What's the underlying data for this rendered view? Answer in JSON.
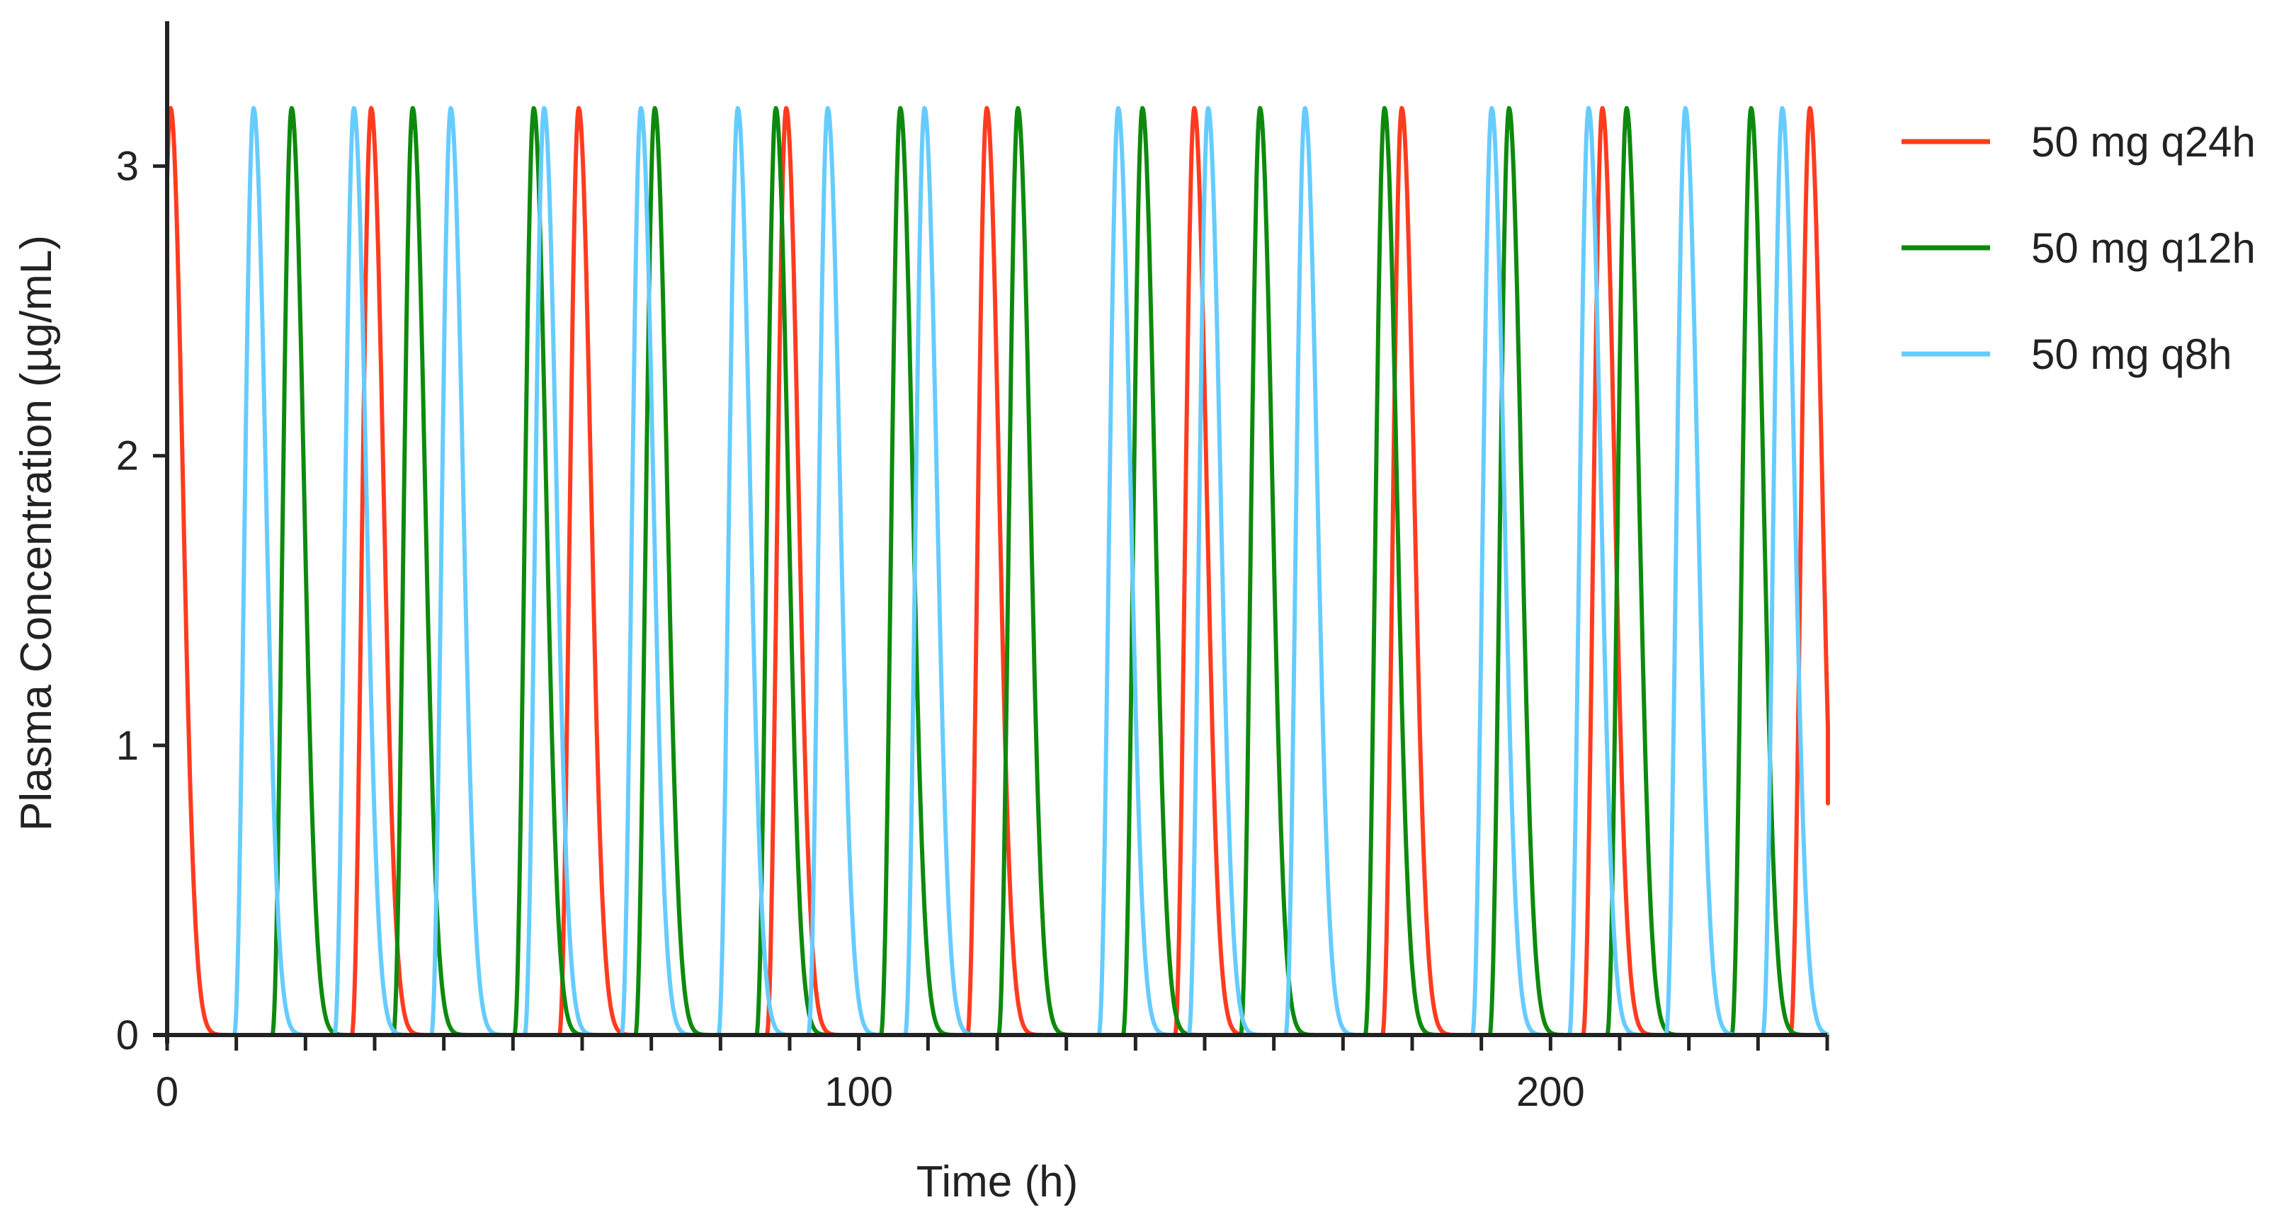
{
  "chart_data": {
    "type": "line",
    "title": "",
    "xlabel": "Time (h)",
    "ylabel": "Plasma Concentration (µg/mL)",
    "xlim": [
      0,
      240
    ],
    "ylim": [
      0,
      3.5
    ],
    "x_ticks": [
      0,
      100,
      200
    ],
    "x_minor_step": 10,
    "y_ticks": [
      0,
      1,
      2,
      3
    ],
    "grid": false,
    "legend_position": "right",
    "series": [
      {
        "name": "50 mg q24h",
        "color": "#ff3b1f",
        "peak_concentration": 3.2,
        "end_concentration": 0.8,
        "peak_times": [
          0.5,
          29.5,
          59.5,
          89.5,
          118.5,
          148.5,
          178.5,
          207.5,
          237.5
        ]
      },
      {
        "name": "50 mg q12h",
        "color": "#0d8a0d",
        "peak_concentration": 3.2,
        "peak_times": [
          18,
          35.5,
          53,
          70.5,
          88,
          106,
          123,
          141,
          158,
          176,
          194,
          211,
          229
        ]
      },
      {
        "name": "50 mg q8h",
        "color": "#66ccff",
        "peak_concentration": 3.2,
        "peak_times": [
          12.5,
          27,
          41,
          54.5,
          68.5,
          82.5,
          95.5,
          109.5,
          137.5,
          150.5,
          164.5,
          191.5,
          205.5,
          219.5,
          233.5
        ]
      }
    ]
  }
}
